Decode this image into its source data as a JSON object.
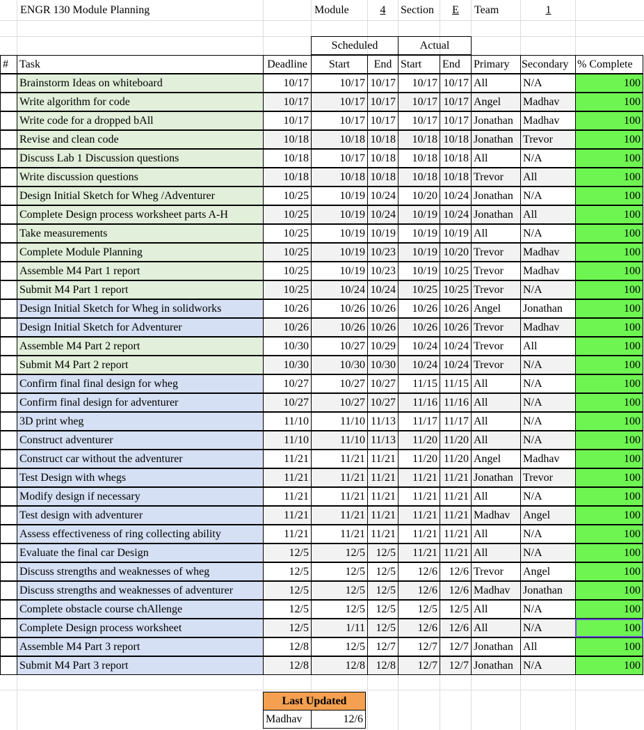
{
  "header": {
    "title": "ENGR 130 Module Planning",
    "module_label": "Module",
    "module_value": "4",
    "section_label": "Section",
    "section_value": "E",
    "team_label": "Team",
    "team_value": "1"
  },
  "group_headers": {
    "scheduled": "Scheduled",
    "actual": "Actual"
  },
  "columns": {
    "num": "#",
    "task": "Task",
    "deadline": "Deadline",
    "start": "Start",
    "end": "End",
    "actual_start": "Start",
    "actual_end": "End",
    "primary": "Primary",
    "secondary": "Secondary",
    "complete": "% Complete"
  },
  "colors": {
    "green_fill": "#e2efda",
    "blue_fill": "#d5e0f4",
    "complete_fill": "#6ef552",
    "updated_fill": "#f4a050"
  },
  "rows": [
    {
      "task": "Brainstorm Ideas on whiteboard",
      "deadline": "10/17",
      "s_start": "10/17",
      "s_end": "10/17",
      "a_start": "10/17",
      "a_end": "10/17",
      "primary": "All",
      "secondary": "N/A",
      "pct": "100",
      "group": "green"
    },
    {
      "task": "Write algorithm for code",
      "deadline": "10/17",
      "s_start": "10/17",
      "s_end": "10/17",
      "a_start": "10/17",
      "a_end": "10/17",
      "primary": "Angel",
      "secondary": "Madhav",
      "pct": "100",
      "group": "green"
    },
    {
      "task": "Write code for a dropped bAll",
      "deadline": "10/17",
      "s_start": "10/17",
      "s_end": "10/17",
      "a_start": "10/17",
      "a_end": "10/17",
      "primary": "Jonathan",
      "secondary": "Madhav",
      "pct": "100",
      "group": "green"
    },
    {
      "task": "Revise and clean code",
      "deadline": "10/18",
      "s_start": "10/18",
      "s_end": "10/18",
      "a_start": "10/18",
      "a_end": "10/18",
      "primary": "Jonathan",
      "secondary": "Trevor",
      "pct": "100",
      "group": "green"
    },
    {
      "task": "Discuss Lab 1 Discussion questions",
      "deadline": "10/18",
      "s_start": "10/17",
      "s_end": "10/18",
      "a_start": "10/18",
      "a_end": "10/18",
      "primary": "All",
      "secondary": "N/A",
      "pct": "100",
      "group": "green"
    },
    {
      "task": "Write discussion questions",
      "deadline": "10/18",
      "s_start": "10/18",
      "s_end": "10/18",
      "a_start": "10/18",
      "a_end": "10/18",
      "primary": "Trevor",
      "secondary": "All",
      "pct": "100",
      "group": "green"
    },
    {
      "task": "Design Initial Sketch for Wheg /Adventurer",
      "deadline": "10/25",
      "s_start": "10/19",
      "s_end": "10/24",
      "a_start": "10/20",
      "a_end": "10/24",
      "primary": "Jonathan",
      "secondary": "N/A",
      "pct": "100",
      "group": "green"
    },
    {
      "task": "Complete Design process worksheet parts A-H",
      "deadline": "10/25",
      "s_start": "10/19",
      "s_end": "10/24",
      "a_start": "10/19",
      "a_end": "10/24",
      "primary": "Jonathan",
      "secondary": "All",
      "pct": "100",
      "group": "green"
    },
    {
      "task": "Take measurements",
      "deadline": "10/25",
      "s_start": "10/19",
      "s_end": "10/19",
      "a_start": "10/19",
      "a_end": "10/19",
      "primary": "All",
      "secondary": "N/A",
      "pct": "100",
      "group": "green"
    },
    {
      "task": "Complete Module Planning",
      "deadline": "10/25",
      "s_start": "10/19",
      "s_end": "10/23",
      "a_start": "10/19",
      "a_end": "10/20",
      "primary": "Trevor",
      "secondary": "Madhav",
      "pct": "100",
      "group": "green"
    },
    {
      "task": "Assemble M4 Part 1 report",
      "deadline": "10/25",
      "s_start": "10/19",
      "s_end": "10/23",
      "a_start": "10/19",
      "a_end": "10/25",
      "primary": "Trevor",
      "secondary": "Madhav",
      "pct": "100",
      "group": "green"
    },
    {
      "task": "Submit M4 Part 1 report",
      "deadline": "10/25",
      "s_start": "10/24",
      "s_end": "10/24",
      "a_start": "10/25",
      "a_end": "10/25",
      "primary": "Trevor",
      "secondary": "N/A",
      "pct": "100",
      "group": "green"
    },
    {
      "task": "Design Initial Sketch for Wheg in solidworks",
      "deadline": "10/26",
      "s_start": "10/26",
      "s_end": "10/26",
      "a_start": "10/26",
      "a_end": "10/26",
      "primary": "Angel",
      "secondary": "Jonathan",
      "pct": "100",
      "group": "blue"
    },
    {
      "task": "Design Initial Sketch for Adventurer",
      "deadline": "10/26",
      "s_start": "10/26",
      "s_end": "10/26",
      "a_start": "10/26",
      "a_end": "10/26",
      "primary": "Trevor",
      "secondary": "Madhav",
      "pct": "100",
      "group": "blue"
    },
    {
      "task": "Assemble M4 Part 2 report",
      "deadline": "10/30",
      "s_start": "10/27",
      "s_end": "10/29",
      "a_start": "10/24",
      "a_end": "10/24",
      "primary": "Trevor",
      "secondary": "All",
      "pct": "100",
      "group": "green"
    },
    {
      "task": "Submit M4 Part 2 report",
      "deadline": "10/30",
      "s_start": "10/30",
      "s_end": "10/30",
      "a_start": "10/24",
      "a_end": "10/24",
      "primary": "Trevor",
      "secondary": "N/A",
      "pct": "100",
      "group": "green"
    },
    {
      "task": "Confirm final final design for wheg",
      "deadline": "10/27",
      "s_start": "10/27",
      "s_end": "10/27",
      "a_start": "11/15",
      "a_end": "11/15",
      "primary": "All",
      "secondary": "N/A",
      "pct": "100",
      "group": "blue"
    },
    {
      "task": "Confirm final design for adventurer",
      "deadline": "10/27",
      "s_start": "10/27",
      "s_end": "10/27",
      "a_start": "11/16",
      "a_end": "11/16",
      "primary": "All",
      "secondary": "N/A",
      "pct": "100",
      "group": "blue"
    },
    {
      "task": "3D print wheg",
      "deadline": "11/10",
      "s_start": "11/10",
      "s_end": "11/13",
      "a_start": "11/17",
      "a_end": "11/17",
      "primary": "All",
      "secondary": "N/A",
      "pct": "100",
      "group": "blue"
    },
    {
      "task": "Construct adventurer",
      "deadline": "11/10",
      "s_start": "11/10",
      "s_end": "11/13",
      "a_start": "11/20",
      "a_end": "11/20",
      "primary": "All",
      "secondary": "N/A",
      "pct": "100",
      "group": "blue"
    },
    {
      "task": "Construct car without the adventurer",
      "deadline": "11/21",
      "s_start": "11/21",
      "s_end": "11/21",
      "a_start": "11/20",
      "a_end": "11/20",
      "primary": "Angel",
      "secondary": "Madhav",
      "pct": "100",
      "group": "blue"
    },
    {
      "task": "Test Design with whegs",
      "deadline": "11/21",
      "s_start": "11/21",
      "s_end": "11/21",
      "a_start": "11/21",
      "a_end": "11/21",
      "primary": "Jonathan",
      "secondary": "Trevor",
      "pct": "100",
      "group": "blue"
    },
    {
      "task": "Modify design if necessary",
      "deadline": "11/21",
      "s_start": "11/21",
      "s_end": "11/21",
      "a_start": "11/21",
      "a_end": "11/21",
      "primary": "All",
      "secondary": "N/A",
      "pct": "100",
      "group": "blue"
    },
    {
      "task": "Test design with adventurer",
      "deadline": "11/21",
      "s_start": "11/21",
      "s_end": "11/21",
      "a_start": "11/21",
      "a_end": "11/21",
      "primary": "Madhav",
      "secondary": "Angel",
      "pct": "100",
      "group": "blue"
    },
    {
      "task": "Assess effectiveness of ring collecting ability",
      "deadline": "11/21",
      "s_start": "11/21",
      "s_end": "11/21",
      "a_start": "11/21",
      "a_end": "11/21",
      "primary": "All",
      "secondary": "N/A",
      "pct": "100",
      "group": "blue"
    },
    {
      "task": "Evaluate the final car Design",
      "deadline": "12/5",
      "s_start": "12/5",
      "s_end": "12/5",
      "a_start": "11/21",
      "a_end": "11/21",
      "primary": "All",
      "secondary": "N/A",
      "pct": "100",
      "group": "blue"
    },
    {
      "task": "Discuss strengths and weaknesses of wheg",
      "deadline": "12/5",
      "s_start": "12/5",
      "s_end": "12/5",
      "a_start": "12/6",
      "a_end": "12/6",
      "primary": "Trevor",
      "secondary": "Angel",
      "pct": "100",
      "group": "blue"
    },
    {
      "task": "Discuss strengths and weaknesses of adventurer",
      "deadline": "12/5",
      "s_start": "12/5",
      "s_end": "12/5",
      "a_start": "12/6",
      "a_end": "12/6",
      "primary": "Madhav",
      "secondary": "Jonathan",
      "pct": "100",
      "group": "blue"
    },
    {
      "task": "Complete obstacle course chAllenge",
      "deadline": "12/5",
      "s_start": "12/5",
      "s_end": "12/5",
      "a_start": "12/5",
      "a_end": "12/5",
      "primary": "All",
      "secondary": "N/A",
      "pct": "100",
      "group": "blue"
    },
    {
      "task": "Complete Design process worksheet",
      "deadline": "12/5",
      "s_start": "1/11",
      "s_end": "12/5",
      "a_start": "12/6",
      "a_end": "12/6",
      "primary": "All",
      "secondary": "N/A",
      "pct": "100",
      "group": "blue"
    },
    {
      "task": "Assemble M4 Part 3 report",
      "deadline": "12/8",
      "s_start": "12/5",
      "s_end": "12/7",
      "a_start": "12/7",
      "a_end": "12/7",
      "primary": "Jonathan",
      "secondary": "All",
      "pct": "100",
      "group": "blue"
    },
    {
      "task": "Submit M4 Part 3 report",
      "deadline": "12/8",
      "s_start": "12/8",
      "s_end": "12/8",
      "a_start": "12/7",
      "a_end": "12/7",
      "primary": "Jonathan",
      "secondary": "N/A",
      "pct": "100",
      "group": "blue"
    }
  ],
  "last_updated": {
    "label": "Last Updated",
    "name": "Madhav",
    "date": "12/6"
  }
}
